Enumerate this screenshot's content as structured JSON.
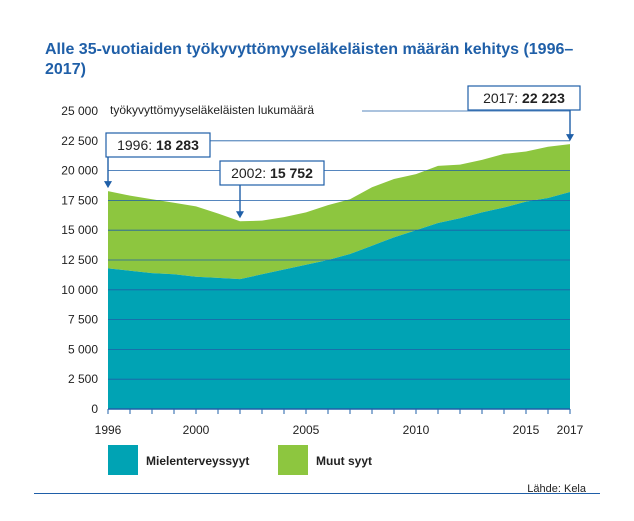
{
  "chart_data": {
    "type": "area",
    "stacked": true,
    "title": "Alle 35-vuotiaiden työkyvyttömyyseläkeläisten määrän kehitys (1996–2017)",
    "ylabel": "työkyvyttömyyseläkeläisten lukumäärä",
    "xlabel": "",
    "ylim": [
      0,
      25000
    ],
    "yticks": [
      0,
      2500,
      5000,
      7500,
      10000,
      12500,
      15000,
      17500,
      20000,
      22500,
      25000
    ],
    "ytick_labels": [
      "0",
      "2 500",
      "5 000",
      "7 500",
      "10 000",
      "12 500",
      "15 000",
      "17 500",
      "20 000",
      "22 500",
      "25 000"
    ],
    "xlim": [
      1996,
      2017
    ],
    "xtick_labels": [
      {
        "year": 1996,
        "label": "1996"
      },
      {
        "year": 2000,
        "label": "2000"
      },
      {
        "year": 2005,
        "label": "2005"
      },
      {
        "year": 2010,
        "label": "2010"
      },
      {
        "year": 2015,
        "label": "2015"
      },
      {
        "year": 2017,
        "label": "2017"
      }
    ],
    "x": [
      1996,
      1997,
      1998,
      1999,
      2000,
      2001,
      2002,
      2003,
      2004,
      2005,
      2006,
      2007,
      2008,
      2009,
      2010,
      2011,
      2012,
      2013,
      2014,
      2015,
      2016,
      2017
    ],
    "series": [
      {
        "name": "Mielenterveyssyyt",
        "color": "#00a3b4",
        "values": [
          11800,
          11600,
          11400,
          11300,
          11100,
          11000,
          10900,
          11300,
          11700,
          12100,
          12500,
          13000,
          13700,
          14400,
          15000,
          15600,
          16000,
          16500,
          16900,
          17400,
          17700,
          18200
        ]
      },
      {
        "name": "Muut syyt",
        "color": "#8dc63f",
        "values": [
          6483,
          6300,
          6200,
          6000,
          5900,
          5400,
          4852,
          4500,
          4400,
          4400,
          4600,
          4600,
          4900,
          4900,
          4700,
          4800,
          4500,
          4400,
          4500,
          4200,
          4300,
          4023
        ]
      }
    ],
    "annotations": [
      {
        "year": 1996,
        "label": "1996: ",
        "value": "18 283"
      },
      {
        "year": 2002,
        "label": "2002: ",
        "value": "15 752"
      },
      {
        "year": 2017,
        "label": "2017: ",
        "value": "22 223"
      }
    ],
    "grid": true,
    "legend_position": "bottom-left"
  },
  "source": "Lähde: Kela",
  "colors": {
    "accent": "#1f5fa8",
    "grid": "#1f5fa8"
  }
}
